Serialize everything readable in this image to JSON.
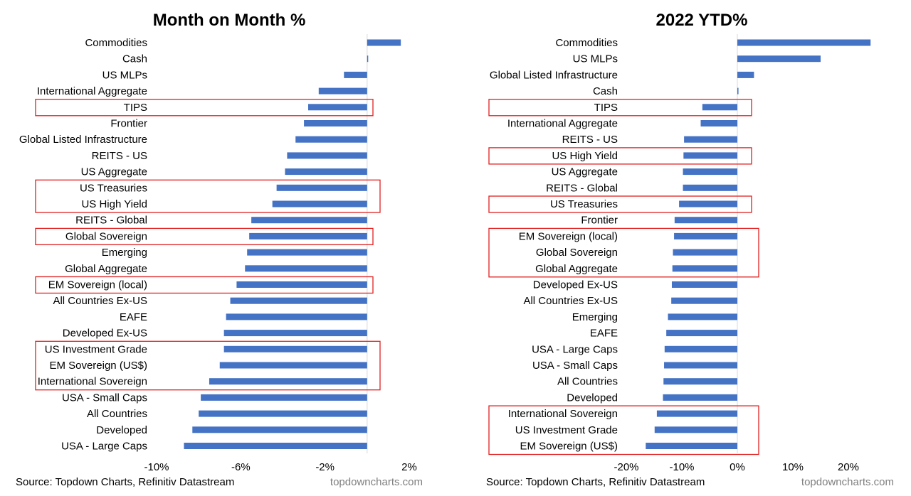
{
  "chart_data": [
    {
      "type": "bar",
      "orientation": "horizontal",
      "title": "Month on Month %",
      "categories": [
        "Commodities",
        "Cash",
        "US MLPs",
        "International Aggregate",
        "TIPS",
        "Frontier",
        "Global Listed Infrastructure",
        "REITS - US",
        "US Aggregate",
        "US Treasuries",
        "US High Yield",
        "REITS - Global",
        "Global Sovereign",
        "Emerging",
        "Global Aggregate",
        "EM Sovereign (local)",
        "All Countries Ex-US",
        "EAFE",
        "Developed Ex-US",
        "US Investment Grade",
        "EM Sovereign (US$)",
        "International Sovereign",
        "USA - Small Caps",
        "All Countries",
        "Developed",
        "USA - Large Caps"
      ],
      "values": [
        1.6,
        0.05,
        -1.1,
        -2.3,
        -2.8,
        -3.0,
        -3.4,
        -3.8,
        -3.9,
        -4.3,
        -4.5,
        -5.5,
        -5.6,
        -5.7,
        -5.8,
        -6.2,
        -6.5,
        -6.7,
        -6.8,
        -6.8,
        -7.0,
        -7.5,
        -7.9,
        -8.0,
        -8.3,
        -8.7
      ],
      "xlim": [
        -10,
        2
      ],
      "xticks": [
        -10,
        -6,
        -2,
        2
      ],
      "tick_labels": [
        "-10%",
        "-6%",
        "-2%",
        "2%"
      ],
      "color": "#4472c4",
      "highlight_boxes": [
        [
          4,
          4
        ],
        [
          9,
          10
        ],
        [
          12,
          12
        ],
        [
          15,
          15
        ],
        [
          19,
          21
        ]
      ],
      "highlight_color": "#e02020",
      "grid": false,
      "source": "Source: Topdown Charts, Refinitiv Datastream",
      "watermark": "topdowncharts.com"
    },
    {
      "type": "bar",
      "orientation": "horizontal",
      "title": "2022 YTD%",
      "categories": [
        "Commodities",
        "US MLPs",
        "Global Listed Infrastructure",
        "Cash",
        "TIPS",
        "International Aggregate",
        "REITS - US",
        "US High Yield",
        "US Aggregate",
        "REITS - Global",
        "US Treasuries",
        "Frontier",
        "EM Sovereign (local)",
        "Global Sovereign",
        "Global Aggregate",
        "Developed Ex-US",
        "All Countries Ex-US",
        "Emerging",
        "EAFE",
        "USA - Large Caps",
        "USA - Small Caps",
        "All Countries",
        "Developed",
        "International Sovereign",
        "US Investment Grade",
        "EM Sovereign (US$)"
      ],
      "values": [
        24,
        15,
        3,
        0.2,
        -6.3,
        -6.6,
        -9.6,
        -9.7,
        -9.8,
        -9.8,
        -10.5,
        -11.3,
        -11.4,
        -11.6,
        -11.7,
        -11.8,
        -11.9,
        -12.5,
        -12.8,
        -13.1,
        -13.2,
        -13.3,
        -13.4,
        -14.5,
        -14.9,
        -16.5
      ],
      "xlim": [
        -20,
        25
      ],
      "xticks": [
        -20,
        -10,
        0,
        10,
        20
      ],
      "tick_labels": [
        "-20%",
        "-10%",
        "0%",
        "10%",
        "20%"
      ],
      "color": "#4472c4",
      "highlight_boxes": [
        [
          4,
          4
        ],
        [
          7,
          7
        ],
        [
          10,
          10
        ],
        [
          12,
          14
        ],
        [
          23,
          25
        ]
      ],
      "highlight_color": "#e02020",
      "grid": false,
      "source": "Source: Topdown Charts, Refinitiv Datastream",
      "watermark": "topdowncharts.com"
    }
  ]
}
